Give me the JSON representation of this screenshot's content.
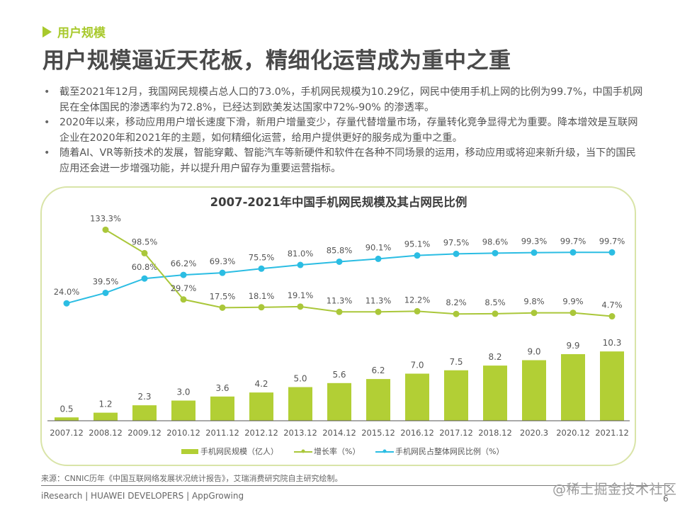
{
  "section_label": "用户规模",
  "headline": "用户规模逼近天花板，精细化运营成为重中之重",
  "bullets": [
    "截至2021年12月，我国网民规模占总人口的73.0%，手机网民规模为10.29亿，网民中使用手机上网的比例为99.7%，中国手机网民在全体国民的渗透率约为72.8%，已经达到欧美发达国家中72%-90% 的渗透率。",
    "2020年以来，移动应用用户增长速度下滑，新用户增量变少，存量代替增量市场，存量转化竞争显得尤为重要。降本增效是互联网企业在2020年和2021年的主题，如何精细化运营，给用户提供更好的服务成为重中之重。",
    "随着AI、VR等新技术的发展，智能穿戴、智能汽车等新硬件和软件在各种不同场景的运用，移动应用或将迎来新升级，当下的国民应用还会进一步增强功能，并以提升用户留存为重要运营指标。"
  ],
  "colors": {
    "accent_green": "#a8c92c",
    "bar_green": "#b2cf35",
    "line_green": "#aac73a",
    "line_blue": "#2bbde3",
    "box_border": "#d9e4a8"
  },
  "chart_data": {
    "type": "bar+line",
    "title": "2007-2021年中国手机网民规模及其占网民比例",
    "categories": [
      "2007.12",
      "2008.12",
      "2009.12",
      "2010.12",
      "2011.12",
      "2012.12",
      "2013.12",
      "2014.12",
      "2015.12",
      "2016.12",
      "2017.12",
      "2018.12",
      "2020.3",
      "2020.12",
      "2021.12"
    ],
    "series": [
      {
        "name": "手机网民规模（亿人）",
        "type": "bar",
        "labels_suffix": "",
        "values": [
          0.5,
          1.2,
          2.3,
          3.0,
          3.6,
          4.2,
          5.0,
          5.6,
          6.2,
          7.0,
          7.5,
          8.2,
          9.0,
          9.9,
          10.3
        ]
      },
      {
        "name": "增长率（%）",
        "type": "line",
        "labels_suffix": "%",
        "values": [
          null,
          133.3,
          98.5,
          29.7,
          17.5,
          18.1,
          19.1,
          11.3,
          11.3,
          12.2,
          8.2,
          8.5,
          9.8,
          9.9,
          4.7
        ]
      },
      {
        "name": "手机网民占整体网民比例（%）",
        "type": "line",
        "labels_suffix": "%",
        "values": [
          24.0,
          39.5,
          60.8,
          66.2,
          69.3,
          75.5,
          81.0,
          85.8,
          90.1,
          95.1,
          97.5,
          98.6,
          99.3,
          99.7,
          99.7
        ]
      }
    ],
    "xlabel": "",
    "ylabel": "",
    "grid": false,
    "legend": "bottom"
  },
  "source": "来源：CNNIC历年《中国互联网络发展状况统计报告》，艾瑞消费研究院自主研究绘制。",
  "footer": "iResearch | HUAWEI DEVELOPERS | AppGrowing",
  "watermark": "@稀土掘金技术社区",
  "page_number": "6"
}
